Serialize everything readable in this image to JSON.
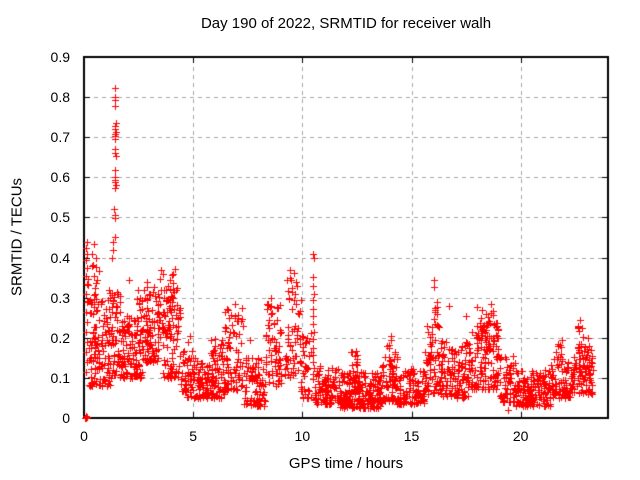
{
  "chart_data": {
    "type": "scatter",
    "title": "Day 190 of 2022, SRMTID for receiver walh",
    "xlabel": "GPS time / hours",
    "ylabel": "SRMTID / TECUs",
    "xlim": [
      0,
      24
    ],
    "ylim": [
      0,
      0.9
    ],
    "xticks": [
      0,
      5,
      10,
      15,
      20
    ],
    "xtick_labels": [
      "0",
      "5",
      "10",
      "15",
      "20"
    ],
    "yticks": [
      0,
      0.1,
      0.2,
      0.3,
      0.4,
      0.5,
      0.6,
      0.7,
      0.8,
      0.9
    ],
    "ytick_labels": [
      "0",
      "0.1",
      "0.2",
      "0.3",
      "0.4",
      "0.5",
      "0.6",
      "0.7",
      "0.8",
      "0.9"
    ],
    "grid": true,
    "legend": "none",
    "marker": "plus",
    "marker_size": 7,
    "colors": {
      "marker": "#ff0000",
      "grid": "#a8a8a8",
      "axis": "#000000",
      "background": "#ffffff",
      "text": "#000000"
    },
    "seed": 19042,
    "scatter_bands": [
      [
        0.15,
        0.7,
        35,
        0.12,
        0.42,
        1.3
      ],
      [
        0.2,
        1.2,
        100,
        0.08,
        0.3,
        1.6
      ],
      [
        1.1,
        1.7,
        70,
        0.1,
        0.33,
        1.4
      ],
      [
        1.7,
        2.7,
        120,
        0.1,
        0.32,
        1.6
      ],
      [
        2.7,
        3.4,
        85,
        0.14,
        0.33,
        1.5
      ],
      [
        3.4,
        3.65,
        18,
        0.2,
        0.385,
        1.0
      ],
      [
        3.6,
        4.4,
        85,
        0.1,
        0.33,
        1.4
      ],
      [
        3.9,
        4.25,
        14,
        0.27,
        0.375,
        1.0
      ],
      [
        4.4,
        5.7,
        115,
        0.05,
        0.17,
        1.5
      ],
      [
        5.7,
        6.45,
        75,
        0.05,
        0.2,
        1.5
      ],
      [
        6.4,
        7.3,
        75,
        0.07,
        0.275,
        1.4
      ],
      [
        7.3,
        8.3,
        85,
        0.03,
        0.15,
        1.5
      ],
      [
        8.3,
        9.05,
        70,
        0.08,
        0.29,
        1.3
      ],
      [
        9.2,
        9.9,
        55,
        0.1,
        0.355,
        1.2
      ],
      [
        9.9,
        10.4,
        35,
        0.05,
        0.22,
        1.5
      ],
      [
        10.55,
        11.7,
        100,
        0.035,
        0.13,
        1.5
      ],
      [
        11.7,
        13.6,
        210,
        0.025,
        0.115,
        1.5
      ],
      [
        12.2,
        12.55,
        14,
        0.1,
        0.175,
        1.0
      ],
      [
        13.6,
        14.35,
        60,
        0.04,
        0.165,
        1.4
      ],
      [
        13.85,
        14.1,
        10,
        0.12,
        0.21,
        1.0
      ],
      [
        14.35,
        15.6,
        110,
        0.035,
        0.125,
        1.5
      ],
      [
        15.6,
        16.45,
        80,
        0.06,
        0.23,
        1.4
      ],
      [
        15.95,
        16.25,
        12,
        0.22,
        0.33,
        1.0
      ],
      [
        16.45,
        17.6,
        100,
        0.05,
        0.19,
        1.5
      ],
      [
        17.6,
        19.0,
        130,
        0.07,
        0.24,
        1.3
      ],
      [
        17.95,
        18.75,
        30,
        0.17,
        0.285,
        1.0
      ],
      [
        19.0,
        19.75,
        60,
        0.04,
        0.155,
        1.5
      ],
      [
        19.75,
        21.4,
        150,
        0.03,
        0.12,
        1.5
      ],
      [
        21.4,
        22.45,
        90,
        0.05,
        0.155,
        1.4
      ],
      [
        21.6,
        21.95,
        10,
        0.13,
        0.195,
        1.0
      ],
      [
        22.45,
        23.3,
        80,
        0.06,
        0.18,
        1.3
      ],
      [
        22.6,
        22.85,
        10,
        0.15,
        0.238,
        1.0
      ]
    ],
    "scatter_points": [
      [
        0.05,
        0.0
      ],
      [
        0.08,
        0.0
      ],
      [
        0.11,
        0.0
      ],
      [
        0.14,
        0.002
      ],
      [
        0.07,
        0.006
      ],
      [
        0.12,
        0.44
      ],
      [
        0.09,
        0.425
      ],
      [
        0.15,
        0.41
      ],
      [
        0.11,
        0.395
      ],
      [
        0.13,
        0.375
      ],
      [
        0.09,
        0.355
      ],
      [
        0.12,
        0.335
      ],
      [
        0.1,
        0.31
      ],
      [
        0.14,
        0.29
      ],
      [
        0.11,
        0.265
      ],
      [
        0.13,
        0.24
      ],
      [
        0.09,
        0.215
      ],
      [
        0.12,
        0.19
      ],
      [
        0.1,
        0.165
      ],
      [
        0.13,
        0.14
      ],
      [
        0.11,
        0.115
      ],
      [
        0.45,
        0.435
      ],
      [
        0.55,
        0.4
      ],
      [
        0.35,
        0.38
      ],
      [
        0.6,
        0.345
      ],
      [
        1.42,
        0.823
      ],
      [
        1.4,
        0.8
      ],
      [
        1.44,
        0.793
      ],
      [
        1.42,
        0.778
      ],
      [
        1.46,
        0.735
      ],
      [
        1.4,
        0.727
      ],
      [
        1.43,
        0.72
      ],
      [
        1.45,
        0.713
      ],
      [
        1.41,
        0.708
      ],
      [
        1.44,
        0.702
      ],
      [
        1.42,
        0.695
      ],
      [
        1.43,
        0.67
      ],
      [
        1.4,
        0.66
      ],
      [
        1.45,
        0.652
      ],
      [
        1.42,
        0.618
      ],
      [
        1.44,
        0.6
      ],
      [
        1.41,
        0.594
      ],
      [
        1.43,
        0.588
      ],
      [
        1.46,
        0.582
      ],
      [
        1.42,
        0.573
      ],
      [
        1.38,
        0.52
      ],
      [
        1.41,
        0.506
      ],
      [
        1.44,
        0.498
      ],
      [
        1.4,
        0.452
      ],
      [
        1.35,
        0.44
      ],
      [
        1.31,
        0.42
      ],
      [
        1.28,
        0.398
      ],
      [
        2.05,
        0.345
      ],
      [
        2.9,
        0.34
      ],
      [
        4.85,
        0.205
      ],
      [
        4.75,
        0.19
      ],
      [
        7.6,
        0.195
      ],
      [
        6.9,
        0.285
      ],
      [
        8.55,
        0.3
      ],
      [
        9.45,
        0.37
      ],
      [
        9.6,
        0.362
      ],
      [
        9.3,
        0.345
      ],
      [
        9.75,
        0.33
      ],
      [
        9.95,
        0.295
      ],
      [
        10.48,
        0.41
      ],
      [
        10.52,
        0.4
      ],
      [
        10.5,
        0.352
      ],
      [
        10.47,
        0.33
      ],
      [
        10.52,
        0.31
      ],
      [
        10.49,
        0.294
      ],
      [
        10.51,
        0.272
      ],
      [
        10.48,
        0.254
      ],
      [
        10.5,
        0.235
      ],
      [
        10.52,
        0.214
      ],
      [
        10.49,
        0.196
      ],
      [
        10.51,
        0.175
      ],
      [
        10.48,
        0.156
      ],
      [
        10.5,
        0.14
      ],
      [
        10.52,
        0.124
      ],
      [
        10.49,
        0.11
      ],
      [
        10.51,
        0.096
      ],
      [
        16.05,
        0.345
      ],
      [
        16.7,
        0.28
      ],
      [
        17.5,
        0.255
      ],
      [
        19.4,
        0.02
      ],
      [
        22.7,
        0.245
      ],
      [
        23.1,
        0.2
      ]
    ]
  }
}
